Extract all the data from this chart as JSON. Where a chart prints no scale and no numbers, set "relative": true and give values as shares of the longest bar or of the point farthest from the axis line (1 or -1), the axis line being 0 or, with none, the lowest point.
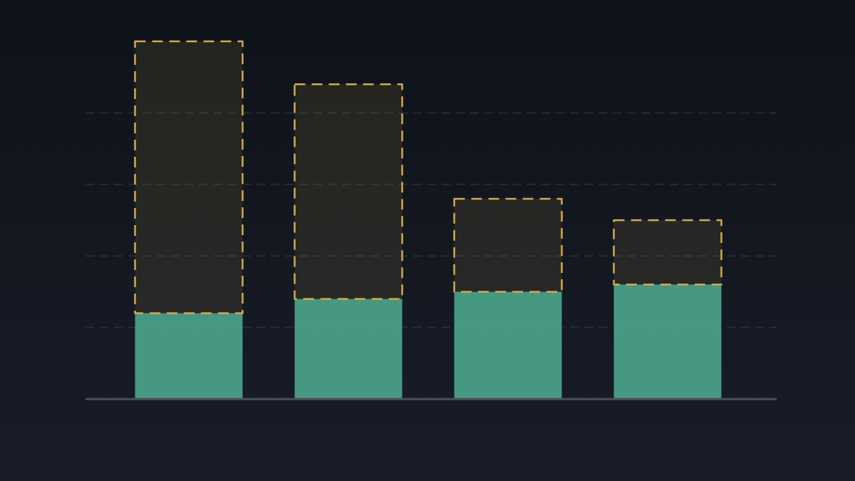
{
  "chart_data": {
    "type": "bar",
    "stacked": true,
    "relative": true,
    "grid": "y",
    "categories": [
      null,
      null,
      null,
      null
    ],
    "series": [
      {
        "color": "#479882",
        "values": [
          0.24,
          0.28,
          0.3,
          0.32
        ]
      },
      {
        "color": "#d4a94f",
        "line_style": "dashed",
        "values": [
          0.76,
          0.6,
          0.26,
          0.18
        ]
      }
    ]
  }
}
